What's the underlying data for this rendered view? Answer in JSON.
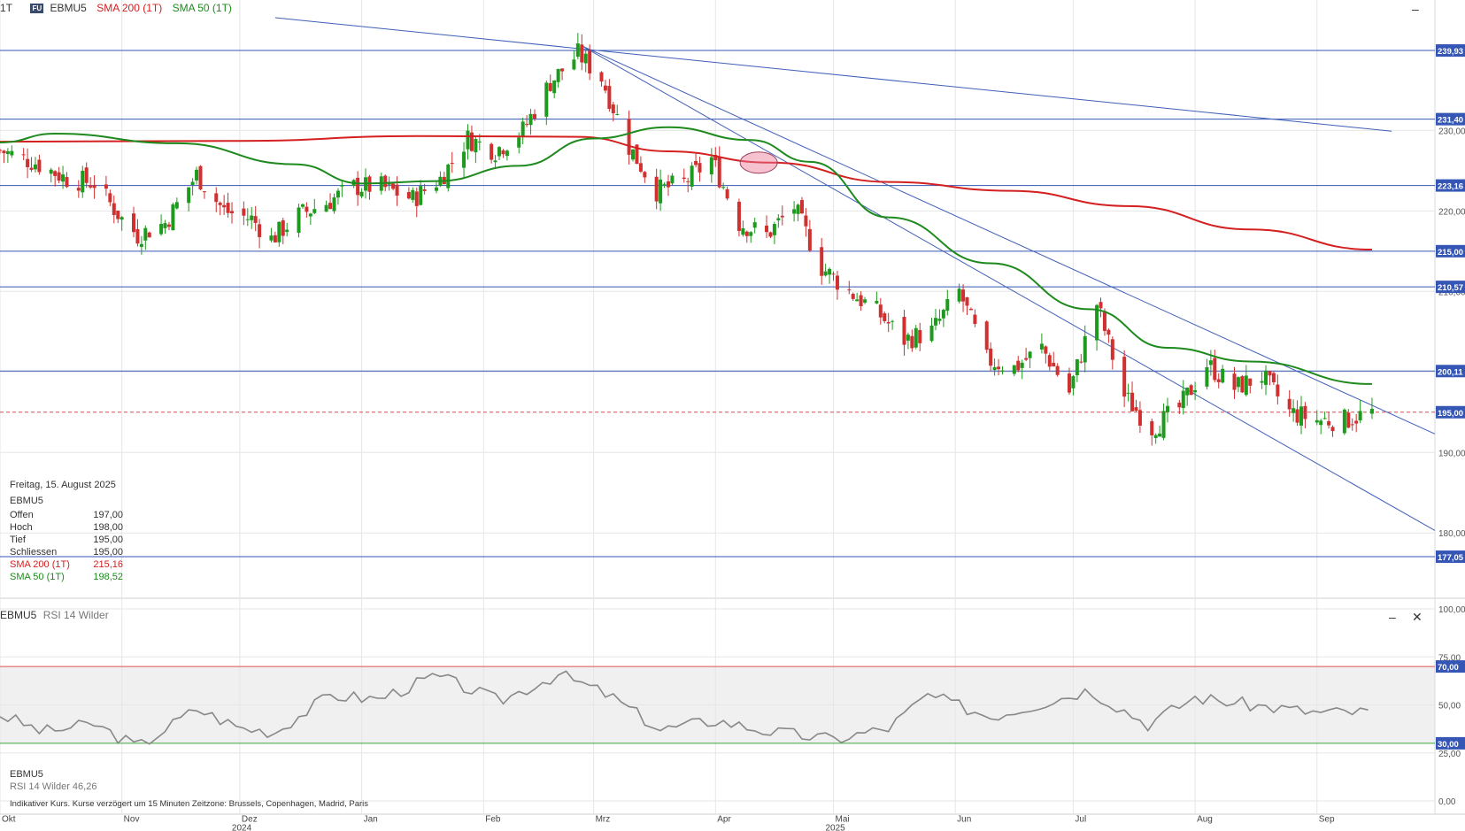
{
  "header": {
    "interval": "1T",
    "symbol": "EBMU5",
    "sma200_label": "SMA 200 (1T)",
    "sma50_label": "SMA 50 (1T)",
    "badge": "FU"
  },
  "info_box": {
    "date": "Freitag, 15. August 2025",
    "symbol": "EBMU5",
    "rows": [
      {
        "label": "Offen",
        "value": "197,00"
      },
      {
        "label": "Hoch",
        "value": "198,00"
      },
      {
        "label": "Tief",
        "value": "195,00"
      },
      {
        "label": "Schliessen",
        "value": "195,00"
      },
      {
        "label": "SMA 200 (1T)",
        "value": "215,16"
      },
      {
        "label": "SMA 50 (1T)",
        "value": "198,52"
      }
    ]
  },
  "rsi_panel": {
    "title_symbol": "EBMU5",
    "title_indicator": "RSI 14 Wilder",
    "info_symbol": "EBMU5",
    "info_label": "RSI 14 Wilder",
    "info_value": "46,26"
  },
  "footer_note": "Indikativer Kurs. Kurse verzögert um 15 Minuten   Zeitzone: Brussels, Copenhagen, Madrid, Paris",
  "colors": {
    "up": "#1e9b1e",
    "down": "#d03030",
    "sma200": "#d42020",
    "sma50": "#1e8a1e",
    "level": "#3556b5",
    "rsi": "#888888",
    "rsi_upper": "#e05050",
    "rsi_lower": "#3aa83a"
  },
  "chart_data": [
    {
      "type": "candlestick",
      "title": "EBMU5",
      "x_labels": [
        {
          "label": "Okt",
          "date": "2024-10-01"
        },
        {
          "label": "Nov",
          "date": "2024-11-01"
        },
        {
          "label": "Dez",
          "date": "2024-12-01"
        },
        {
          "label": "Jan",
          "date": "2025-01-01"
        },
        {
          "label": "Feb",
          "date": "2025-02-01"
        },
        {
          "label": "Mrz",
          "date": "2025-03-01"
        },
        {
          "label": "Apr",
          "date": "2025-04-01"
        },
        {
          "label": "Mai",
          "date": "2025-05-01"
        },
        {
          "label": "Jun",
          "date": "2025-06-01"
        },
        {
          "label": "Jul",
          "date": "2025-07-01"
        },
        {
          "label": "Aug",
          "date": "2025-08-01"
        },
        {
          "label": "Sep",
          "date": "2025-09-01"
        }
      ],
      "year_labels": [
        {
          "label": "2024",
          "date": "2024-12-01"
        },
        {
          "label": "2025",
          "date": "2025-05-01"
        }
      ],
      "x_range": [
        "2024-10-01",
        "2025-10-01"
      ],
      "ylim": [
        172,
        244
      ],
      "yticks": [
        180,
        190,
        200,
        210,
        220,
        230
      ],
      "ytick_labels": [
        "180,00",
        "190,00",
        "200,00",
        "210,00",
        "220,00",
        "230,00"
      ],
      "horizontal_levels": [
        {
          "value": 239.93,
          "label": "239,93"
        },
        {
          "value": 231.4,
          "label": "231,40"
        },
        {
          "value": 223.16,
          "label": "223,16"
        },
        {
          "value": 215.0,
          "label": "215,00"
        },
        {
          "value": 210.57,
          "label": "210,57"
        },
        {
          "value": 200.11,
          "label": "200,11"
        },
        {
          "value": 177.05,
          "label": "177,05"
        }
      ],
      "last_price": {
        "value": 195.0,
        "label": "195,00"
      },
      "closes": [
        {
          "date": "2024-10-01",
          "close": 227.5
        },
        {
          "date": "2024-10-10",
          "close": 226.0
        },
        {
          "date": "2024-10-18",
          "close": 224.0
        },
        {
          "date": "2024-10-25",
          "close": 223.5
        },
        {
          "date": "2024-11-01",
          "close": 219.0
        },
        {
          "date": "2024-11-05",
          "close": 217.0
        },
        {
          "date": "2024-11-12",
          "close": 218.5
        },
        {
          "date": "2024-11-20",
          "close": 224.5
        },
        {
          "date": "2024-11-27",
          "close": 220.0
        },
        {
          "date": "2024-12-04",
          "close": 219.0
        },
        {
          "date": "2024-12-09",
          "close": 216.5
        },
        {
          "date": "2024-12-16",
          "close": 219.5
        },
        {
          "date": "2024-12-23",
          "close": 221.0
        },
        {
          "date": "2024-12-30",
          "close": 223.0
        },
        {
          "date": "2025-01-06",
          "close": 223.0
        },
        {
          "date": "2025-01-14",
          "close": 221.5
        },
        {
          "date": "2025-01-21",
          "close": 224.0
        },
        {
          "date": "2025-01-28",
          "close": 229.0
        },
        {
          "date": "2025-02-04",
          "close": 227.5
        },
        {
          "date": "2025-02-11",
          "close": 230.0
        },
        {
          "date": "2025-02-18",
          "close": 236.0
        },
        {
          "date": "2025-02-25",
          "close": 239.5
        },
        {
          "date": "2025-03-03",
          "close": 236.5
        },
        {
          "date": "2025-03-10",
          "close": 228.0
        },
        {
          "date": "2025-03-17",
          "close": 222.5
        },
        {
          "date": "2025-03-24",
          "close": 223.5
        },
        {
          "date": "2025-03-31",
          "close": 226.5
        },
        {
          "date": "2025-04-07",
          "close": 218.5
        },
        {
          "date": "2025-04-14",
          "close": 217.0
        },
        {
          "date": "2025-04-21",
          "close": 220.5
        },
        {
          "date": "2025-04-28",
          "close": 213.0
        },
        {
          "date": "2025-05-05",
          "close": 210.0
        },
        {
          "date": "2025-05-12",
          "close": 207.5
        },
        {
          "date": "2025-05-19",
          "close": 204.0
        },
        {
          "date": "2025-05-26",
          "close": 205.0
        },
        {
          "date": "2025-06-02",
          "close": 210.0
        },
        {
          "date": "2025-06-09",
          "close": 201.5
        },
        {
          "date": "2025-06-16",
          "close": 200.5
        },
        {
          "date": "2025-06-23",
          "close": 203.0
        },
        {
          "date": "2025-06-30",
          "close": 197.5
        },
        {
          "date": "2025-07-07",
          "close": 208.5
        },
        {
          "date": "2025-07-14",
          "close": 197.0
        },
        {
          "date": "2025-07-21",
          "close": 193.0
        },
        {
          "date": "2025-07-28",
          "close": 195.5
        },
        {
          "date": "2025-08-04",
          "close": 201.0
        },
        {
          "date": "2025-08-11",
          "close": 198.0
        },
        {
          "date": "2025-08-18",
          "close": 199.5
        },
        {
          "date": "2025-08-25",
          "close": 195.0
        },
        {
          "date": "2025-09-01",
          "close": 194.0
        },
        {
          "date": "2025-09-08",
          "close": 194.0
        },
        {
          "date": "2025-09-15",
          "close": 195.0
        }
      ],
      "sma200": [
        {
          "date": "2024-10-01",
          "value": 228.6
        },
        {
          "date": "2024-12-01",
          "value": 228.7
        },
        {
          "date": "2025-01-15",
          "value": 229.3
        },
        {
          "date": "2025-02-25",
          "value": 229.2
        },
        {
          "date": "2025-03-20",
          "value": 227.4
        },
        {
          "date": "2025-04-15",
          "value": 226.0
        },
        {
          "date": "2025-05-15",
          "value": 223.6
        },
        {
          "date": "2025-06-15",
          "value": 222.5
        },
        {
          "date": "2025-07-15",
          "value": 220.6
        },
        {
          "date": "2025-08-15",
          "value": 217.7
        },
        {
          "date": "2025-09-15",
          "value": 215.2
        }
      ],
      "sma50": [
        {
          "date": "2024-10-01",
          "value": 228.5
        },
        {
          "date": "2024-10-15",
          "value": 229.6
        },
        {
          "date": "2024-11-15",
          "value": 228.4
        },
        {
          "date": "2024-12-15",
          "value": 225.8
        },
        {
          "date": "2025-01-01",
          "value": 223.4
        },
        {
          "date": "2025-01-20",
          "value": 223.7
        },
        {
          "date": "2025-02-10",
          "value": 225.6
        },
        {
          "date": "2025-03-01",
          "value": 229.0
        },
        {
          "date": "2025-03-20",
          "value": 230.4
        },
        {
          "date": "2025-04-10",
          "value": 228.8
        },
        {
          "date": "2025-04-25",
          "value": 226.1
        },
        {
          "date": "2025-05-15",
          "value": 219.2
        },
        {
          "date": "2025-06-10",
          "value": 213.5
        },
        {
          "date": "2025-07-05",
          "value": 207.8
        },
        {
          "date": "2025-07-25",
          "value": 203.0
        },
        {
          "date": "2025-08-15",
          "value": 201.3
        },
        {
          "date": "2025-09-15",
          "value": 198.5
        }
      ],
      "trendlines": [
        {
          "from": {
            "date": "2024-12-10",
            "value": 244
          },
          "to": {
            "date": "2025-09-20",
            "value": 229.9
          }
        },
        {
          "from": {
            "date": "2025-02-26",
            "value": 240.5
          },
          "to": {
            "date": "2025-10-01",
            "value": 192.3
          }
        },
        {
          "from": {
            "date": "2025-02-26",
            "value": 240.5
          },
          "to": {
            "date": "2025-10-01",
            "value": 180.3
          }
        }
      ],
      "highlight": {
        "date": "2025-04-12",
        "value": 226.0
      }
    },
    {
      "type": "line",
      "title": "RSI 14 Wilder",
      "ylim": [
        0,
        100
      ],
      "yticks": [
        0,
        25,
        30,
        50,
        70,
        75,
        100
      ],
      "ytick_labels": [
        "0,00",
        "25,00",
        "30,00",
        "50,00",
        "70,00",
        "75,00",
        "100,00"
      ],
      "upper_level": {
        "value": 70,
        "label": "70,00"
      },
      "lower_level": {
        "value": 30,
        "label": "30,00"
      },
      "series": [
        {
          "values": [
            {
              "date": "2024-10-01",
              "value": 45
            },
            {
              "date": "2024-10-12",
              "value": 36
            },
            {
              "date": "2024-10-25",
              "value": 40
            },
            {
              "date": "2024-11-05",
              "value": 28
            },
            {
              "date": "2024-11-20",
              "value": 48
            },
            {
              "date": "2024-12-01",
              "value": 38
            },
            {
              "date": "2024-12-10",
              "value": 36
            },
            {
              "date": "2024-12-24",
              "value": 55
            },
            {
              "date": "2025-01-05",
              "value": 53
            },
            {
              "date": "2025-01-20",
              "value": 65
            },
            {
              "date": "2025-02-05",
              "value": 52
            },
            {
              "date": "2025-02-20",
              "value": 66
            },
            {
              "date": "2025-03-05",
              "value": 55
            },
            {
              "date": "2025-03-18",
              "value": 37
            },
            {
              "date": "2025-04-01",
              "value": 42
            },
            {
              "date": "2025-04-15",
              "value": 36
            },
            {
              "date": "2025-05-01",
              "value": 32
            },
            {
              "date": "2025-05-15",
              "value": 38
            },
            {
              "date": "2025-05-25",
              "value": 55
            },
            {
              "date": "2025-06-10",
              "value": 44
            },
            {
              "date": "2025-06-25",
              "value": 52
            },
            {
              "date": "2025-07-05",
              "value": 58
            },
            {
              "date": "2025-07-20",
              "value": 40
            },
            {
              "date": "2025-08-01",
              "value": 54
            },
            {
              "date": "2025-08-15",
              "value": 50
            },
            {
              "date": "2025-09-01",
              "value": 46
            },
            {
              "date": "2025-09-15",
              "value": 46.26
            }
          ]
        }
      ]
    }
  ]
}
